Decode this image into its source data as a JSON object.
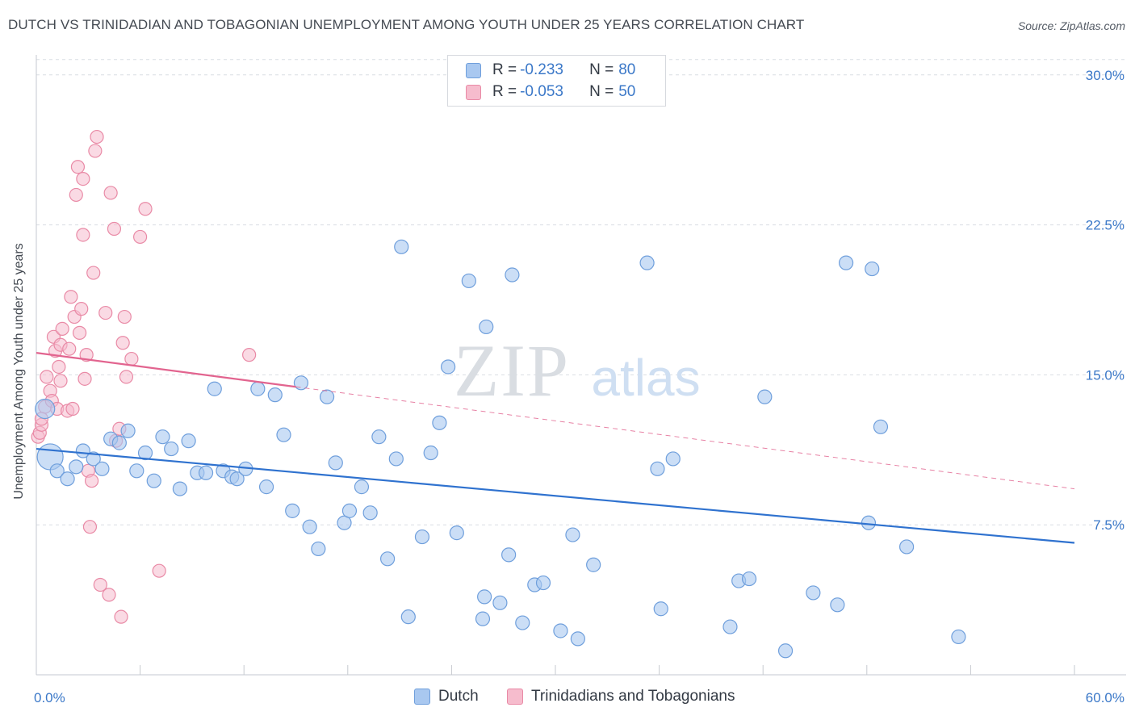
{
  "title": "DUTCH VS TRINIDADIAN AND TOBAGONIAN UNEMPLOYMENT AMONG YOUTH UNDER 25 YEARS CORRELATION CHART",
  "source": "Source: ZipAtlas.com",
  "watermark": {
    "zip": "ZIP",
    "atlas": "atlas"
  },
  "colors": {
    "dutch_fill": "#a9c8f0",
    "dutch_stroke": "#6f9fdc",
    "dutch_line": "#2f72cf",
    "trini_fill": "#f6bccd",
    "trini_stroke": "#e98aa6",
    "trini_line": "#e2648f",
    "tick_text": "#3b78c8",
    "grid": "#d9dde3"
  },
  "legend": {
    "rows": [
      {
        "r_label": "R =",
        "r_value": "-0.233",
        "n_label": "N =",
        "n_value": "80"
      },
      {
        "r_label": "R =",
        "r_value": "-0.053",
        "n_label": "N =",
        "n_value": "50"
      }
    ]
  },
  "bottom_legend": {
    "dutch": "Dutch",
    "trini": "Trinidadians and Tobagonians"
  },
  "chart_data": {
    "type": "scatter",
    "title": "DUTCH VS TRINIDADIAN AND TOBAGONIAN UNEMPLOYMENT AMONG YOUTH UNDER 25 YEARS CORRELATION CHART",
    "xlabel": "",
    "ylabel": "Unemployment Among Youth under 25 years",
    "xlim": [
      0,
      60
    ],
    "ylim": [
      0,
      31
    ],
    "x_tick_labels": [
      "0.0%",
      "60.0%"
    ],
    "y_ticks": [
      7.5,
      15.0,
      22.5,
      30.0
    ],
    "y_tick_labels": [
      "7.5%",
      "15.0%",
      "22.5%",
      "30.0%"
    ],
    "grid": true,
    "series": [
      {
        "name": "Dutch",
        "r": -0.233,
        "n": 80,
        "trend": {
          "x": [
            0,
            60
          ],
          "y": [
            11.3,
            6.6
          ]
        },
        "points": [
          [
            0.5,
            13.3
          ],
          [
            0.8,
            10.9
          ],
          [
            1.2,
            10.2
          ],
          [
            1.8,
            9.8
          ],
          [
            2.3,
            10.4
          ],
          [
            2.7,
            11.2
          ],
          [
            3.3,
            10.8
          ],
          [
            3.8,
            10.3
          ],
          [
            4.3,
            11.8
          ],
          [
            4.8,
            11.6
          ],
          [
            5.3,
            12.2
          ],
          [
            5.8,
            10.2
          ],
          [
            6.3,
            11.1
          ],
          [
            6.8,
            9.7
          ],
          [
            7.3,
            11.9
          ],
          [
            7.8,
            11.3
          ],
          [
            8.3,
            9.3
          ],
          [
            8.8,
            11.7
          ],
          [
            9.3,
            10.1
          ],
          [
            9.8,
            10.1
          ],
          [
            10.3,
            14.3
          ],
          [
            10.8,
            10.2
          ],
          [
            11.3,
            9.9
          ],
          [
            11.6,
            9.8
          ],
          [
            12.1,
            10.3
          ],
          [
            12.8,
            14.3
          ],
          [
            13.3,
            9.4
          ],
          [
            13.8,
            14.0
          ],
          [
            14.3,
            12.0
          ],
          [
            14.8,
            8.2
          ],
          [
            15.3,
            14.6
          ],
          [
            15.8,
            7.4
          ],
          [
            16.3,
            6.3
          ],
          [
            16.8,
            13.9
          ],
          [
            17.3,
            10.6
          ],
          [
            17.8,
            7.6
          ],
          [
            18.1,
            8.2
          ],
          [
            18.8,
            9.4
          ],
          [
            19.3,
            8.1
          ],
          [
            19.8,
            11.9
          ],
          [
            20.3,
            5.8
          ],
          [
            20.8,
            10.8
          ],
          [
            21.1,
            21.4
          ],
          [
            21.5,
            2.9
          ],
          [
            22.3,
            6.9
          ],
          [
            22.8,
            11.1
          ],
          [
            23.3,
            12.6
          ],
          [
            23.8,
            15.4
          ],
          [
            24.3,
            7.1
          ],
          [
            25.0,
            19.7
          ],
          [
            25.8,
            2.8
          ],
          [
            25.9,
            3.9
          ],
          [
            26.0,
            17.4
          ],
          [
            26.8,
            3.6
          ],
          [
            27.3,
            6.0
          ],
          [
            27.5,
            20.0
          ],
          [
            28.1,
            2.6
          ],
          [
            28.8,
            4.5
          ],
          [
            29.3,
            4.6
          ],
          [
            30.3,
            2.2
          ],
          [
            31.0,
            7.0
          ],
          [
            31.3,
            1.8
          ],
          [
            32.2,
            5.5
          ],
          [
            35.3,
            20.6
          ],
          [
            35.9,
            10.3
          ],
          [
            36.1,
            3.3
          ],
          [
            36.8,
            10.8
          ],
          [
            40.1,
            2.4
          ],
          [
            40.6,
            4.7
          ],
          [
            41.2,
            4.8
          ],
          [
            42.1,
            13.9
          ],
          [
            43.3,
            1.2
          ],
          [
            44.9,
            4.1
          ],
          [
            46.3,
            3.5
          ],
          [
            46.8,
            20.6
          ],
          [
            48.1,
            7.6
          ],
          [
            48.3,
            20.3
          ],
          [
            48.8,
            12.4
          ],
          [
            50.3,
            6.4
          ],
          [
            53.3,
            1.9
          ]
        ]
      },
      {
        "name": "Trinidadians and Tobagonians",
        "r": -0.053,
        "n": 50,
        "trend": {
          "x": [
            0,
            15
          ],
          "y": [
            16.1,
            14.4
          ],
          "dashed_to": {
            "x": 60,
            "y": 9.3
          }
        },
        "points": [
          [
            0.1,
            11.9
          ],
          [
            0.2,
            12.1
          ],
          [
            0.3,
            12.5
          ],
          [
            0.5,
            13.4
          ],
          [
            0.8,
            14.2
          ],
          [
            0.9,
            13.7
          ],
          [
            1.0,
            16.9
          ],
          [
            1.1,
            16.2
          ],
          [
            1.2,
            13.3
          ],
          [
            1.3,
            15.4
          ],
          [
            1.4,
            14.7
          ],
          [
            1.4,
            16.5
          ],
          [
            1.5,
            17.3
          ],
          [
            1.8,
            13.2
          ],
          [
            1.9,
            16.3
          ],
          [
            2.0,
            18.9
          ],
          [
            2.1,
            13.3
          ],
          [
            2.2,
            17.9
          ],
          [
            2.3,
            24.0
          ],
          [
            2.4,
            25.4
          ],
          [
            2.5,
            17.1
          ],
          [
            2.6,
            18.3
          ],
          [
            2.7,
            22.0
          ],
          [
            2.7,
            24.8
          ],
          [
            2.8,
            14.8
          ],
          [
            2.9,
            16.0
          ],
          [
            3.0,
            10.2
          ],
          [
            3.1,
            7.4
          ],
          [
            3.2,
            9.7
          ],
          [
            3.3,
            20.1
          ],
          [
            3.4,
            26.2
          ],
          [
            3.5,
            26.9
          ],
          [
            3.7,
            4.5
          ],
          [
            4.0,
            18.1
          ],
          [
            4.2,
            4.0
          ],
          [
            4.3,
            24.1
          ],
          [
            4.5,
            22.3
          ],
          [
            4.6,
            11.7
          ],
          [
            4.8,
            12.3
          ],
          [
            4.9,
            2.9
          ],
          [
            5.0,
            16.6
          ],
          [
            5.1,
            17.9
          ],
          [
            5.2,
            14.9
          ],
          [
            5.5,
            15.8
          ],
          [
            6.0,
            21.9
          ],
          [
            6.3,
            23.3
          ],
          [
            7.1,
            5.2
          ],
          [
            12.3,
            16.0
          ],
          [
            0.3,
            12.8
          ],
          [
            0.6,
            14.9
          ]
        ]
      }
    ]
  }
}
